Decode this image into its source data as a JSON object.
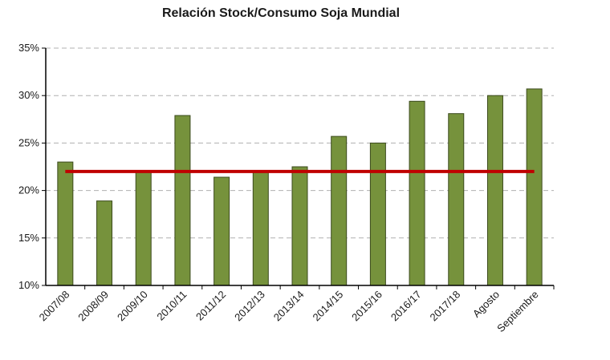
{
  "chart_data": {
    "type": "bar",
    "title": "Relación Stock/Consumo Soja Mundial",
    "categories": [
      "2007/08",
      "2008/09",
      "2009/10",
      "2010/11",
      "2011/12",
      "2012/13",
      "2013/14",
      "2014/15",
      "2015/16",
      "2016/17",
      "2017/18",
      "Agosto",
      "Septiembre"
    ],
    "values": [
      23.0,
      18.9,
      22.0,
      27.9,
      21.4,
      22.0,
      22.5,
      25.7,
      25.0,
      29.4,
      28.1,
      30.0,
      30.7
    ],
    "value_unit": "%",
    "ylim": [
      10,
      35
    ],
    "yticks": [
      "10%",
      "15%",
      "20%",
      "25%",
      "30%",
      "35%"
    ],
    "ytick_values": [
      10,
      15,
      20,
      25,
      30,
      35
    ],
    "reference_line": {
      "value": 22.0,
      "color": "#c00000"
    },
    "grid": true,
    "bar_color": "#76923c",
    "bar_edge_color": "#3b4a1d"
  }
}
